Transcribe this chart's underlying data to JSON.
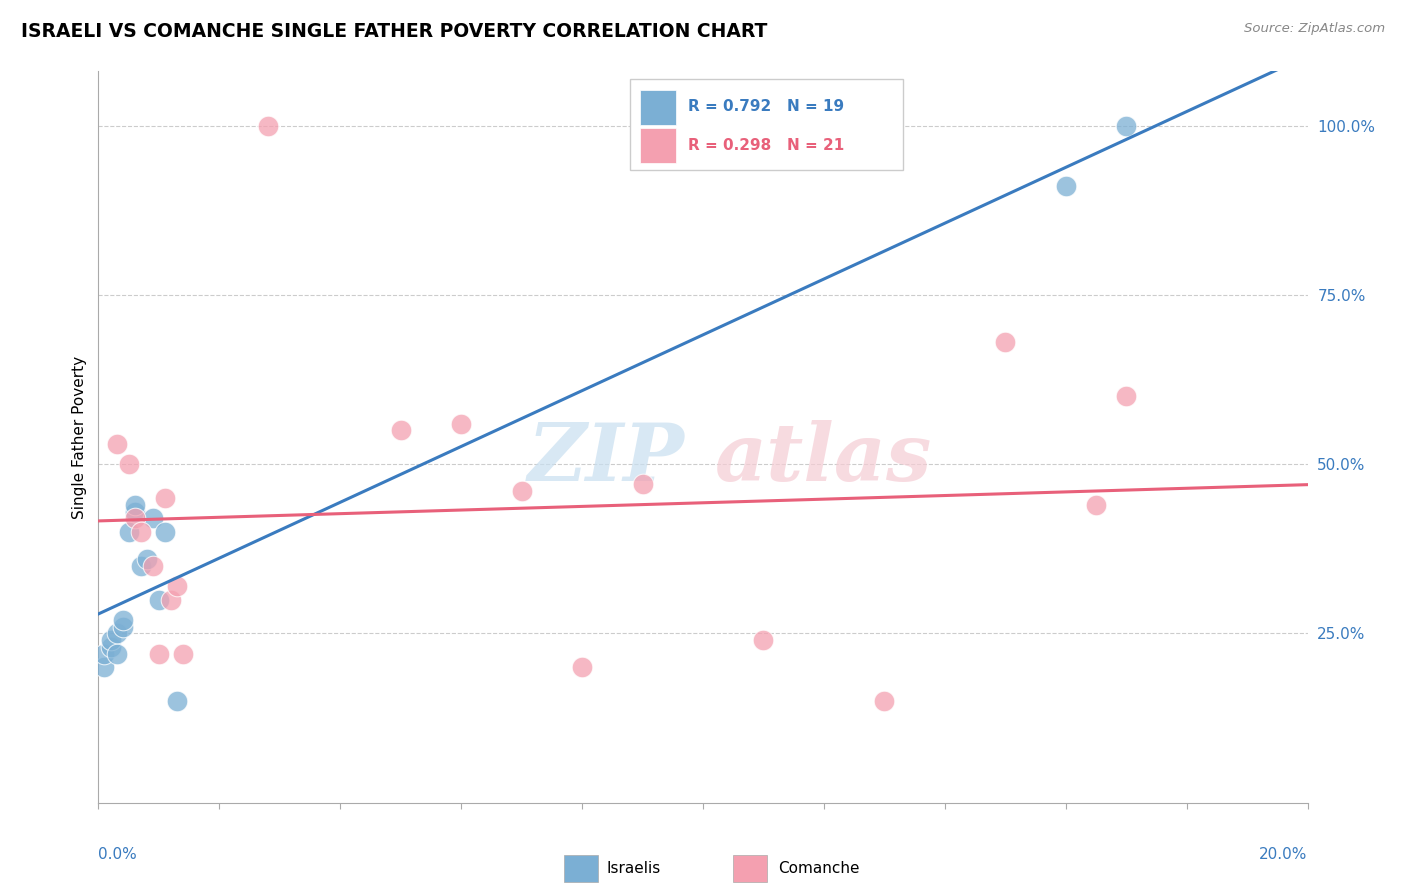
{
  "title": "ISRAELI VS COMANCHE SINGLE FATHER POVERTY CORRELATION CHART",
  "source": "Source: ZipAtlas.com",
  "ylabel": "Single Father Poverty",
  "legend_label1": "Israelis",
  "legend_label2": "Comanche",
  "R1": 0.792,
  "N1": 19,
  "R2": 0.298,
  "N2": 21,
  "color_israeli": "#7bafd4",
  "color_comanche": "#f4a0b0",
  "color_line_israeli": "#3a7bbf",
  "color_line_comanche": "#e8607a",
  "israeli_x": [
    0.001,
    0.001,
    0.002,
    0.002,
    0.003,
    0.003,
    0.004,
    0.004,
    0.005,
    0.006,
    0.006,
    0.007,
    0.008,
    0.009,
    0.01,
    0.011,
    0.013,
    0.16,
    0.17
  ],
  "israeli_y": [
    0.2,
    0.22,
    0.23,
    0.24,
    0.22,
    0.25,
    0.26,
    0.27,
    0.4,
    0.43,
    0.44,
    0.35,
    0.36,
    0.42,
    0.3,
    0.4,
    0.15,
    0.91,
    1.0
  ],
  "comanche_x": [
    0.003,
    0.005,
    0.006,
    0.007,
    0.009,
    0.01,
    0.011,
    0.012,
    0.013,
    0.014,
    0.028,
    0.05,
    0.06,
    0.07,
    0.08,
    0.09,
    0.11,
    0.13,
    0.15,
    0.165,
    0.17
  ],
  "comanche_y": [
    0.53,
    0.5,
    0.42,
    0.4,
    0.35,
    0.22,
    0.45,
    0.3,
    0.32,
    0.22,
    1.0,
    0.55,
    0.56,
    0.46,
    0.2,
    0.47,
    0.24,
    0.15,
    0.68,
    0.44,
    0.6
  ],
  "yticks": [
    0.25,
    0.5,
    0.75,
    1.0
  ],
  "ytick_labels": [
    "25.0%",
    "50.0%",
    "75.0%",
    "100.0%"
  ],
  "grid_color": "#cccccc",
  "background_color": "#ffffff",
  "tick_color": "#3a7bbf"
}
